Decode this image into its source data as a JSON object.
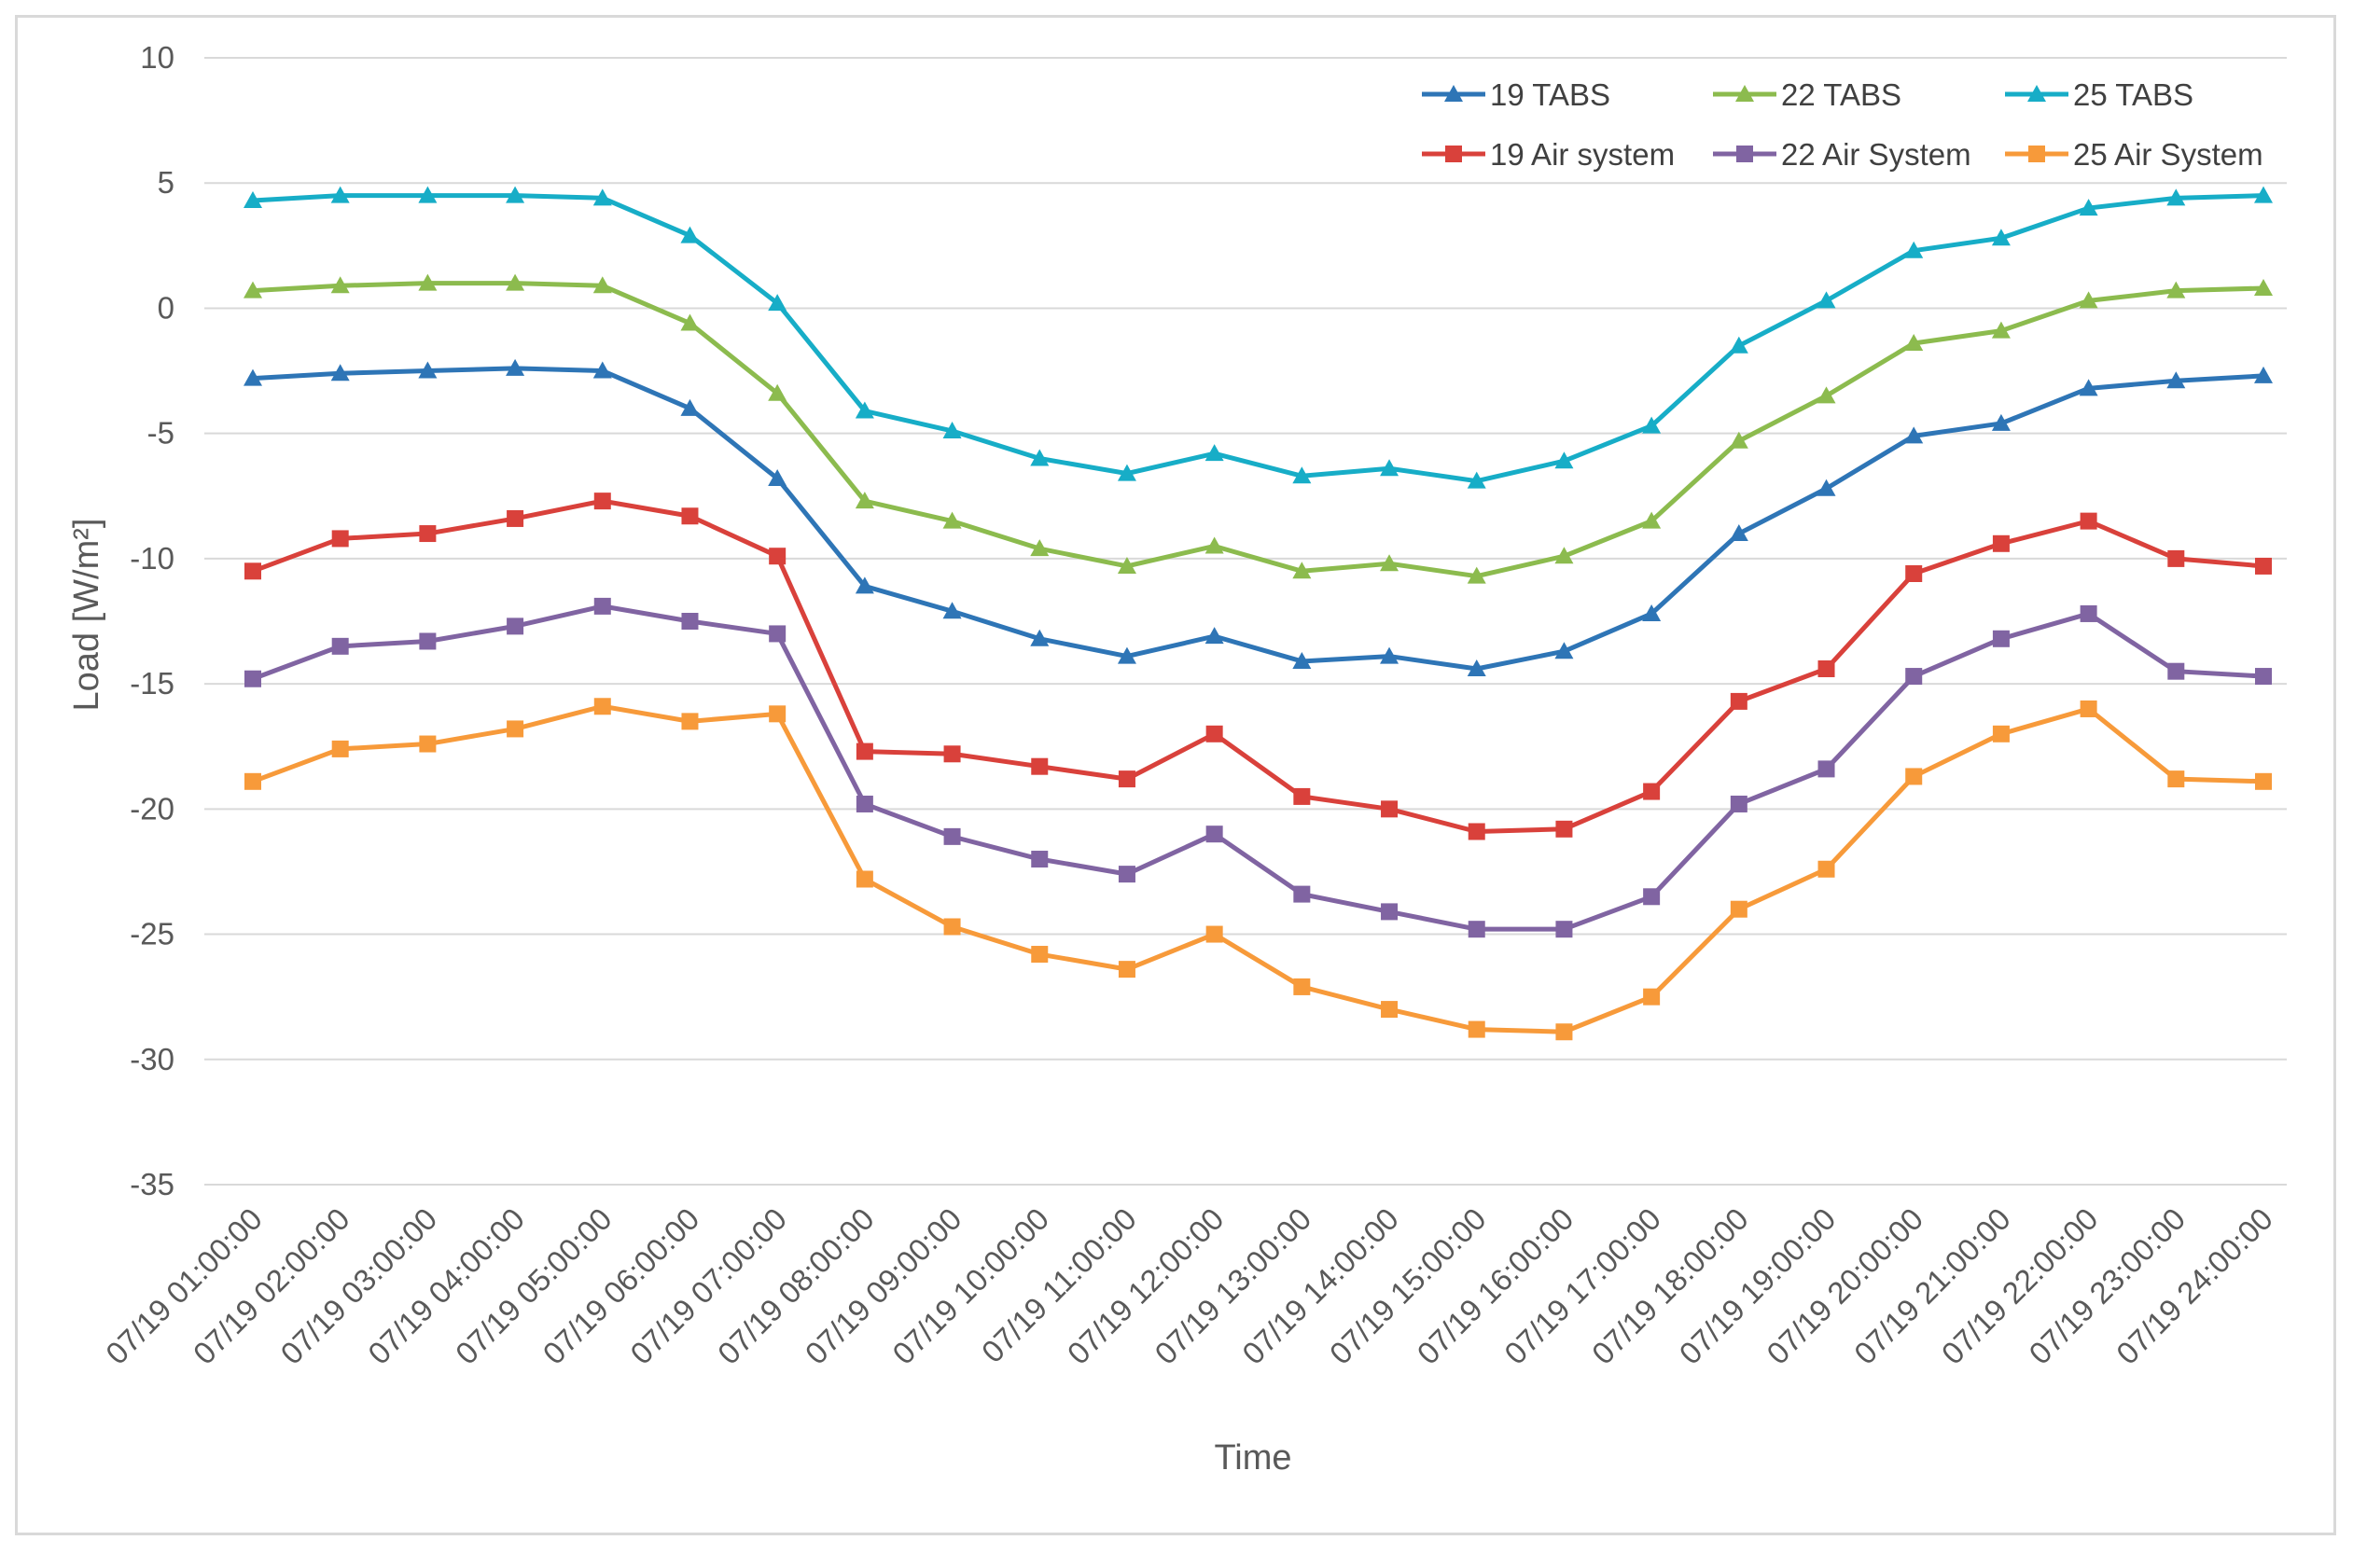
{
  "chart_data": {
    "type": "line",
    "title": "",
    "xlabel": "Time",
    "ylabel": "Load [W/m²]",
    "ylim": [
      -35,
      10
    ],
    "yticks": [
      10,
      5,
      0,
      -5,
      -10,
      -15,
      -20,
      -25,
      -30,
      -35
    ],
    "grid": true,
    "legend_position": "top-right",
    "categories": [
      "07/19  01:00:00",
      "07/19  02:00:00",
      "07/19  03:00:00",
      "07/19  04:00:00",
      "07/19  05:00:00",
      "07/19  06:00:00",
      "07/19  07:00:00",
      "07/19  08:00:00",
      "07/19  09:00:00",
      "07/19  10:00:00",
      "07/19  11:00:00",
      "07/19  12:00:00",
      "07/19  13:00:00",
      "07/19  14:00:00",
      "07/19  15:00:00",
      "07/19  16:00:00",
      "07/19  17:00:00",
      "07/19  18:00:00",
      "07/19  19:00:00",
      "07/19  20:00:00",
      "07/19  21:00:00",
      "07/19  22:00:00",
      "07/19  23:00:00",
      "07/19  24:00:00"
    ],
    "series": [
      {
        "name": "19 TABS",
        "color": "#2e75b6",
        "marker": "triangle",
        "values": [
          -2.8,
          -2.6,
          -2.5,
          -2.4,
          -2.5,
          -4.0,
          -6.8,
          -11.1,
          -12.1,
          -13.2,
          -13.9,
          -13.1,
          -14.1,
          -13.9,
          -14.4,
          -13.7,
          -12.2,
          -9.0,
          -7.2,
          -5.1,
          -4.6,
          -3.2,
          -2.9,
          -2.7
        ]
      },
      {
        "name": "22 TABS",
        "color": "#8cbb4e",
        "marker": "triangle",
        "values": [
          0.7,
          0.9,
          1.0,
          1.0,
          0.9,
          -0.6,
          -3.4,
          -7.7,
          -8.5,
          -9.6,
          -10.3,
          -9.5,
          -10.5,
          -10.2,
          -10.7,
          -9.9,
          -8.5,
          -5.3,
          -3.5,
          -1.4,
          -0.9,
          0.3,
          0.7,
          0.8
        ]
      },
      {
        "name": "25 TABS",
        "color": "#17adc7",
        "marker": "triangle",
        "values": [
          4.3,
          4.5,
          4.5,
          4.5,
          4.4,
          2.9,
          0.2,
          -4.1,
          -4.9,
          -6.0,
          -6.6,
          -5.8,
          -6.7,
          -6.4,
          -6.9,
          -6.1,
          -4.7,
          -1.5,
          0.3,
          2.3,
          2.8,
          4.0,
          4.4,
          4.5
        ]
      },
      {
        "name": "19 Air system",
        "color": "#d9413b",
        "marker": "square",
        "values": [
          -10.5,
          -9.2,
          -9.0,
          -8.4,
          -7.7,
          -8.3,
          -9.9,
          -17.7,
          -17.8,
          -18.3,
          -18.8,
          -17.0,
          -19.5,
          -20.0,
          -20.9,
          -20.8,
          -19.3,
          -15.7,
          -14.4,
          -10.6,
          -9.4,
          -8.5,
          -10.0,
          -10.3
        ]
      },
      {
        "name": "22 Air System",
        "color": "#8064a2",
        "marker": "square",
        "values": [
          -14.8,
          -13.5,
          -13.3,
          -12.7,
          -11.9,
          -12.5,
          -13.0,
          -19.8,
          -21.1,
          -22.0,
          -22.6,
          -21.0,
          -23.4,
          -24.1,
          -24.8,
          -24.8,
          -23.5,
          -19.8,
          -18.4,
          -14.7,
          -13.2,
          -12.2,
          -14.5,
          -14.7
        ]
      },
      {
        "name": "25 Air System",
        "color": "#f79a3a",
        "marker": "square",
        "values": [
          -18.9,
          -17.6,
          -17.4,
          -16.8,
          -15.9,
          -16.5,
          -16.2,
          -22.8,
          -24.7,
          -25.8,
          -26.4,
          -25.0,
          -27.1,
          -28.0,
          -28.8,
          -28.9,
          -27.5,
          -24.0,
          -22.4,
          -18.7,
          -17.0,
          -16.0,
          -18.8,
          -18.9
        ]
      }
    ]
  }
}
